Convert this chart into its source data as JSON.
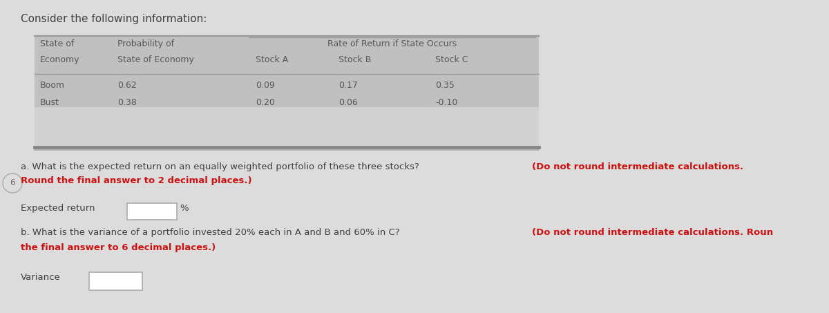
{
  "title": "Consider the following information:",
  "bg_color": "#dcdcdc",
  "table_bg": "#c8c8c8",
  "table_header_bg": "#b8b8b8",
  "table_text_color": "#555555",
  "normal_text_color": "#404040",
  "bold_text_color": "#cc1111",
  "side_label": "6",
  "rate_header": "Rate of Return if State Occurs",
  "col_headers_row1": [
    "State of",
    "Probability of"
  ],
  "col_headers_row2": [
    "Economy",
    "State of Economy",
    "Stock A",
    "Stock B",
    "Stock C"
  ],
  "table_data": [
    [
      "Boom",
      "0.62",
      "0.09",
      "0.17",
      "0.35"
    ],
    [
      "Bust",
      "0.38",
      "0.20",
      "0.06",
      "-0.10"
    ]
  ],
  "q_a_text1": "a. What is the expected return on an equally weighted portfolio of these three stocks? ",
  "q_a_text2": "(Do not round intermediate calculations.",
  "q_a_text3": "Round the final answer to 2 decimal places.)",
  "label_a": "Expected return",
  "percent": "%",
  "q_b_text1": "b. What is the variance of a portfolio invested 20% each in A and B and 60% in C? ",
  "q_b_text2": "(Do not round intermediate calculations. Roun",
  "q_b_text3": "the final answer to 6 decimal places.)",
  "label_b": "Variance"
}
